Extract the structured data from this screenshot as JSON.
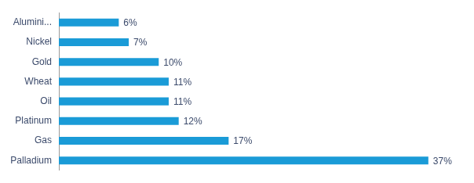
{
  "chart_data": {
    "type": "bar",
    "orientation": "horizontal",
    "categories": [
      "Alumini...",
      "Nickel",
      "Gold",
      "Wheat",
      "Oil",
      "Platinum",
      "Gas",
      "Palladium"
    ],
    "values": [
      6,
      7,
      10,
      11,
      11,
      12,
      17,
      37
    ],
    "value_labels": [
      "6%",
      "7%",
      "10%",
      "11%",
      "11%",
      "12%",
      "17%",
      "37%"
    ],
    "color": "#1a9bd7",
    "xlim": [
      0,
      40
    ],
    "grid": false,
    "data_labels": true,
    "tick_labels": "y"
  }
}
